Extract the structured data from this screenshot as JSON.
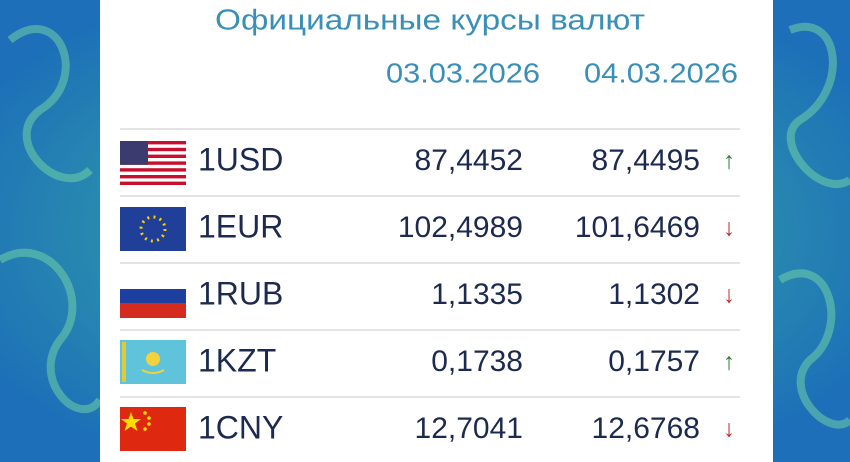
{
  "title": "Официальные курсы валют",
  "table": {
    "columns": [
      "03.03.2026",
      "04.03.2026"
    ],
    "rows": [
      {
        "currency": "1USD",
        "values": [
          "87,4452",
          "87,4495"
        ],
        "arrow": "↑",
        "arrow_color": "#2e7d32"
      },
      {
        "currency": "1EUR",
        "values": [
          "102,4989",
          "101,6469"
        ],
        "arrow": "↓",
        "arrow_color": "#c62828"
      },
      {
        "currency": "1RUB",
        "values": [
          "1,1335",
          "1,1302"
        ],
        "arrow": "↓",
        "arrow_color": "#c62828"
      },
      {
        "currency": "1KZT",
        "values": [
          "0,1738",
          "0,1757"
        ],
        "arrow": "↑",
        "arrow_color": "#2e7d32"
      },
      {
        "currency": "1CNY",
        "values": [
          "12,7041",
          "12,6768"
        ],
        "arrow": "↓",
        "arrow_color": "#c62828"
      }
    ]
  }
}
